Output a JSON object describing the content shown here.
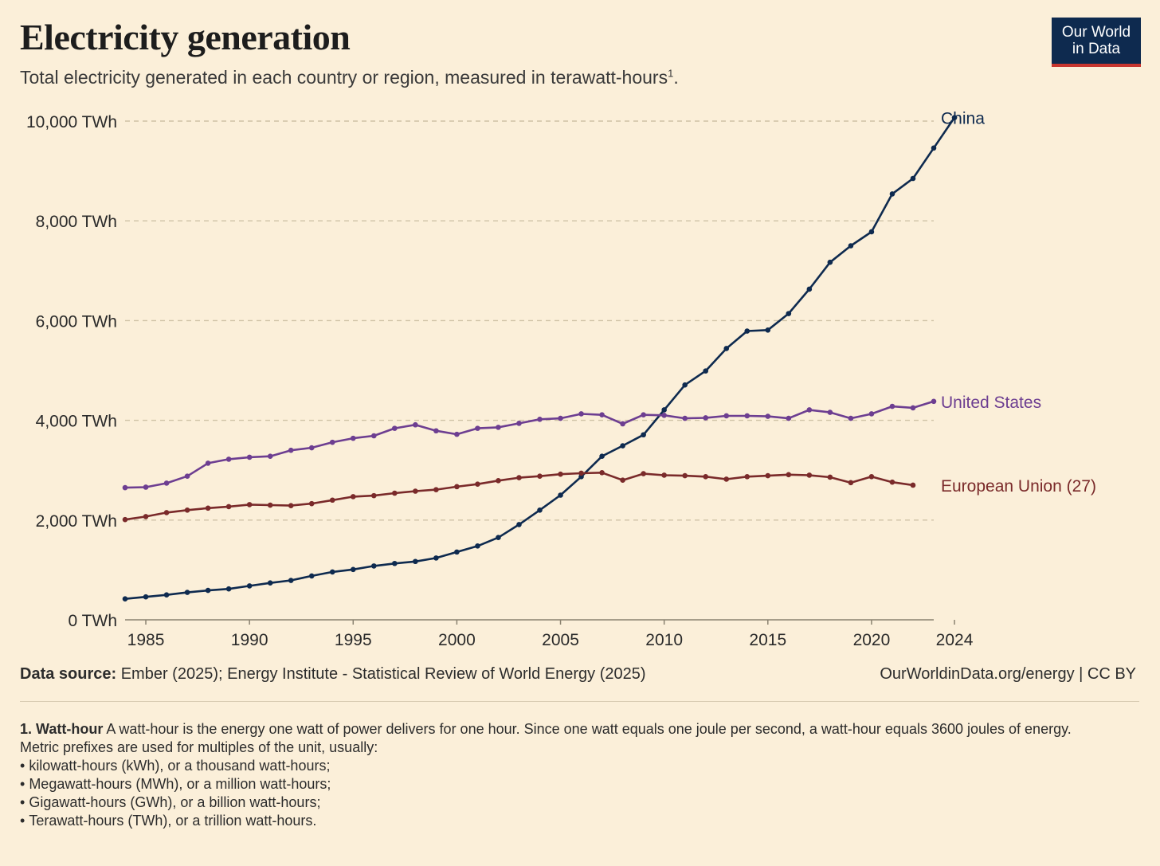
{
  "header": {
    "title": "Electricity generation",
    "subtitle": "Total electricity generated in each country or region, measured in terawatt-hours",
    "subtitle_note": "1",
    "subtitle_end": ".",
    "logo_line1": "Our World",
    "logo_line2": "in Data",
    "logo_color": "#0e2a4f",
    "logo_accent": "#c7362f"
  },
  "footer": {
    "source_label": "Data source:",
    "source_text": " Ember (2025); Energy Institute - Statistical Review of World Energy (2025)",
    "license": "OurWorldinData.org/energy | CC BY",
    "note_title": "1. Watt-hour",
    "note_text": " A watt-hour is the energy one watt of power delivers for one hour. Since one watt equals one joule per second, a watt-hour equals 3600 joules of energy.",
    "note_line2": "Metric prefixes are used for multiples of the unit, usually:",
    "note_items": [
      "kilowatt-hours (kWh), or a thousand watt-hours;",
      "Megawatt-hours (MWh), or a million watt-hours;",
      "Gigawatt-hours (GWh), or a billion watt-hours;",
      "Terawatt-hours (TWh), or a trillion watt-hours."
    ]
  },
  "chart_data": {
    "type": "line",
    "xlim": [
      1984,
      2023
    ],
    "ylim": [
      0,
      10000
    ],
    "grid": true,
    "y_ticks": [
      {
        "value": 0,
        "label": "0 TWh"
      },
      {
        "value": 2000,
        "label": "2,000 TWh"
      },
      {
        "value": 4000,
        "label": "4,000 TWh"
      },
      {
        "value": 6000,
        "label": "6,000 TWh"
      },
      {
        "value": 8000,
        "label": "8,000 TWh"
      },
      {
        "value": 10000,
        "label": "10,000 TWh"
      }
    ],
    "x_ticks": [
      {
        "value": 1985,
        "label": "1985"
      },
      {
        "value": 1990,
        "label": "1990"
      },
      {
        "value": 1995,
        "label": "1995"
      },
      {
        "value": 2000,
        "label": "2000"
      },
      {
        "value": 2005,
        "label": "2005"
      },
      {
        "value": 2010,
        "label": "2010"
      },
      {
        "value": 2015,
        "label": "2015"
      },
      {
        "value": 2020,
        "label": "2020"
      },
      {
        "value": 2024,
        "label": "2024"
      }
    ],
    "series": [
      {
        "name": "China",
        "color": "#0e2a4f",
        "points": [
          [
            1984,
            420
          ],
          [
            1985,
            460
          ],
          [
            1986,
            500
          ],
          [
            1987,
            550
          ],
          [
            1988,
            590
          ],
          [
            1989,
            620
          ],
          [
            1990,
            680
          ],
          [
            1991,
            740
          ],
          [
            1992,
            790
          ],
          [
            1993,
            880
          ],
          [
            1994,
            960
          ],
          [
            1995,
            1010
          ],
          [
            1996,
            1080
          ],
          [
            1997,
            1130
          ],
          [
            1998,
            1170
          ],
          [
            1999,
            1240
          ],
          [
            2000,
            1360
          ],
          [
            2001,
            1480
          ],
          [
            2002,
            1650
          ],
          [
            2003,
            1910
          ],
          [
            2004,
            2200
          ],
          [
            2005,
            2500
          ],
          [
            2006,
            2870
          ],
          [
            2007,
            3280
          ],
          [
            2008,
            3490
          ],
          [
            2009,
            3710
          ],
          [
            2010,
            4210
          ],
          [
            2011,
            4710
          ],
          [
            2012,
            4990
          ],
          [
            2013,
            5440
          ],
          [
            2014,
            5790
          ],
          [
            2015,
            5810
          ],
          [
            2016,
            6140
          ],
          [
            2017,
            6630
          ],
          [
            2018,
            7170
          ],
          [
            2019,
            7500
          ],
          [
            2020,
            7780
          ],
          [
            2021,
            8540
          ],
          [
            2022,
            8850
          ],
          [
            2023,
            9460
          ],
          [
            2024,
            10070
          ]
        ]
      },
      {
        "name": "United States",
        "color": "#6d3e91",
        "points": [
          [
            1984,
            2650
          ],
          [
            1985,
            2660
          ],
          [
            1986,
            2740
          ],
          [
            1987,
            2880
          ],
          [
            1988,
            3140
          ],
          [
            1989,
            3220
          ],
          [
            1990,
            3260
          ],
          [
            1991,
            3280
          ],
          [
            1992,
            3400
          ],
          [
            1993,
            3450
          ],
          [
            1994,
            3560
          ],
          [
            1995,
            3640
          ],
          [
            1996,
            3690
          ],
          [
            1997,
            3840
          ],
          [
            1998,
            3910
          ],
          [
            1999,
            3790
          ],
          [
            2000,
            3720
          ],
          [
            2001,
            3840
          ],
          [
            2002,
            3860
          ],
          [
            2003,
            3940
          ],
          [
            2004,
            4020
          ],
          [
            2005,
            4040
          ],
          [
            2006,
            4130
          ],
          [
            2007,
            4110
          ],
          [
            2008,
            3930
          ],
          [
            2009,
            4110
          ],
          [
            2010,
            4100
          ],
          [
            2011,
            4040
          ],
          [
            2012,
            4050
          ],
          [
            2013,
            4090
          ],
          [
            2014,
            4090
          ],
          [
            2015,
            4080
          ],
          [
            2016,
            4040
          ],
          [
            2017,
            4210
          ],
          [
            2018,
            4160
          ],
          [
            2019,
            4040
          ],
          [
            2020,
            4130
          ],
          [
            2021,
            4280
          ],
          [
            2022,
            4250
          ],
          [
            2023,
            4380
          ]
        ]
      },
      {
        "name": "European Union (27)",
        "color": "#7a2a2a",
        "points": [
          [
            1984,
            2010
          ],
          [
            1985,
            2070
          ],
          [
            1986,
            2150
          ],
          [
            1987,
            2200
          ],
          [
            1988,
            2240
          ],
          [
            1989,
            2270
          ],
          [
            1990,
            2310
          ],
          [
            1991,
            2300
          ],
          [
            1992,
            2290
          ],
          [
            1993,
            2330
          ],
          [
            1994,
            2400
          ],
          [
            1995,
            2470
          ],
          [
            1996,
            2490
          ],
          [
            1997,
            2540
          ],
          [
            1998,
            2580
          ],
          [
            1999,
            2610
          ],
          [
            2000,
            2670
          ],
          [
            2001,
            2720
          ],
          [
            2002,
            2790
          ],
          [
            2003,
            2850
          ],
          [
            2004,
            2880
          ],
          [
            2005,
            2920
          ],
          [
            2006,
            2940
          ],
          [
            2007,
            2950
          ],
          [
            2008,
            2800
          ],
          [
            2009,
            2930
          ],
          [
            2010,
            2900
          ],
          [
            2011,
            2890
          ],
          [
            2012,
            2870
          ],
          [
            2013,
            2820
          ],
          [
            2014,
            2870
          ],
          [
            2015,
            2890
          ],
          [
            2016,
            2910
          ],
          [
            2017,
            2900
          ],
          [
            2018,
            2860
          ],
          [
            2019,
            2750
          ],
          [
            2020,
            2870
          ],
          [
            2021,
            2760
          ],
          [
            2022,
            2700
          ]
        ]
      }
    ]
  }
}
